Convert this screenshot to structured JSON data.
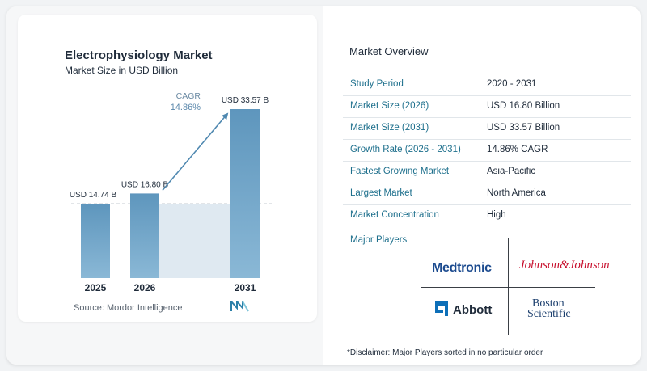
{
  "chart": {
    "title": "Electrophysiology Market",
    "subtitle": "Market Size in USD Billion",
    "cagr_label": "CAGR",
    "cagr_value": "14.86%",
    "source": "Source: Mordor Intelligence"
  },
  "chart_data": {
    "type": "bar",
    "categories": [
      "2025",
      "2026",
      "2031"
    ],
    "values": [
      14.74,
      16.8,
      33.57
    ],
    "data_labels": [
      "USD 14.74 B",
      "USD 16.80 B",
      "USD 33.57 B"
    ],
    "title": "Electrophysiology Market",
    "subtitle": "Market Size in USD Billion",
    "ylim": [
      0,
      33.57
    ],
    "annotations": [
      "CAGR",
      "14.86%"
    ],
    "grid": false
  },
  "overview": {
    "title": "Market Overview",
    "rows": [
      {
        "label": "Study Period",
        "value": "2020 - 2031"
      },
      {
        "label": "Market Size (2026)",
        "value": "USD 16.80 Billion"
      },
      {
        "label": "Market Size (2031)",
        "value": "USD 33.57 Billion"
      },
      {
        "label": "Growth Rate (2026 - 2031)",
        "value": "14.86% CAGR"
      },
      {
        "label": "Fastest Growing Market",
        "value": "Asia-Pacific"
      },
      {
        "label": "Largest Market",
        "value": "North America"
      },
      {
        "label": "Market Concentration",
        "value": "High"
      }
    ]
  },
  "players": {
    "title": "Major Players",
    "logos": [
      "Medtronic",
      "Johnson&Johnson",
      "Abbott",
      "Boston",
      "Scientific"
    ]
  },
  "disclaimer": "*Disclaimer: Major Players sorted in no particular order",
  "colors": {
    "bar": "#6a9fc2",
    "accent": "#1d6f8c",
    "shade": "#dfe9f1",
    "arrow": "#4f88b0"
  }
}
